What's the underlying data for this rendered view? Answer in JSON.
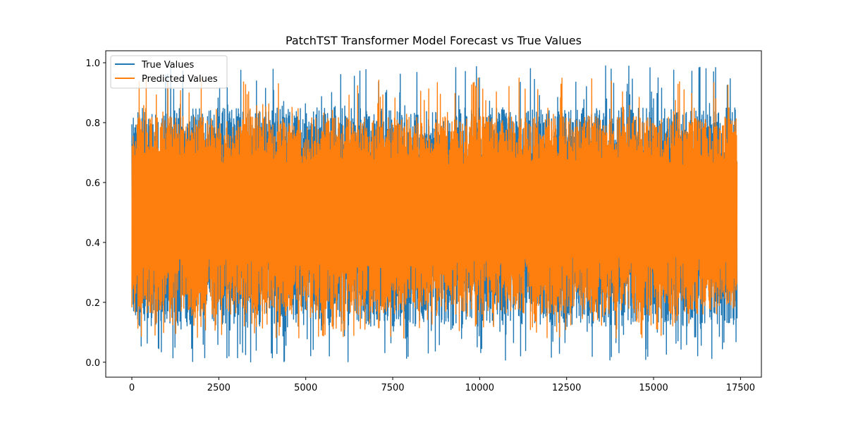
{
  "chart_data": {
    "type": "line",
    "title": "PatchTST Transformer Model Forecast vs True Values",
    "xlabel": "",
    "ylabel": "",
    "xlim": [
      -750,
      18100
    ],
    "ylim": [
      -0.05,
      1.04
    ],
    "xticks": [
      0,
      2500,
      5000,
      7500,
      10000,
      12500,
      15000,
      17500
    ],
    "xtick_labels": [
      "0",
      "2500",
      "5000",
      "7500",
      "10000",
      "12500",
      "15000",
      "17500"
    ],
    "yticks": [
      0.0,
      0.2,
      0.4,
      0.6,
      0.8,
      1.0
    ],
    "ytick_labels": [
      "0.0",
      "0.2",
      "0.4",
      "0.6",
      "0.8",
      "1.0"
    ],
    "grid": false,
    "legend": {
      "placement": "top-left"
    },
    "series": [
      {
        "name": "True Values",
        "color": "#1f77b4",
        "n_points": 17400,
        "x_range": [
          0,
          17400
        ],
        "typical_range": [
          0.12,
          0.85
        ],
        "extremes": [
          0.0,
          0.99
        ]
      },
      {
        "name": "Predicted Values",
        "color": "#ff7f0e",
        "n_points": 17400,
        "x_range": [
          0,
          17400
        ],
        "typical_range": [
          0.16,
          0.82
        ],
        "extremes": [
          0.08,
          0.95
        ]
      }
    ]
  }
}
